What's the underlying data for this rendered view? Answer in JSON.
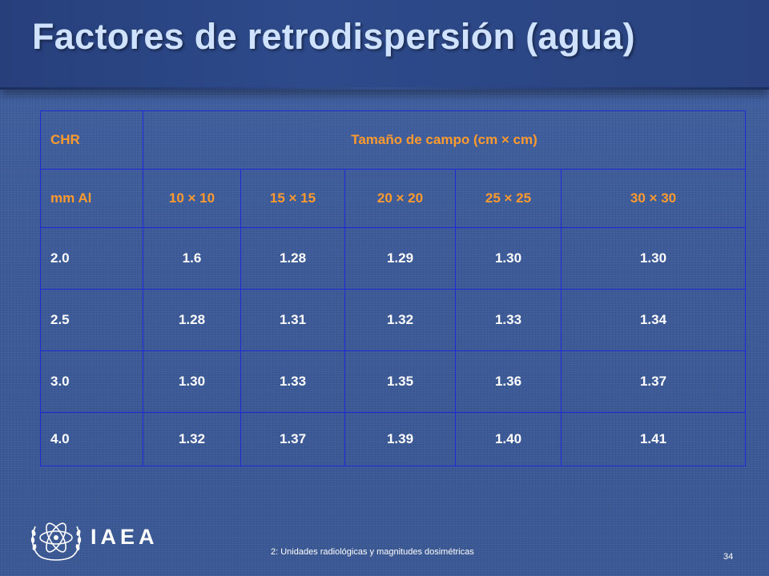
{
  "title": "Factores de retrodispersión (agua)",
  "table": {
    "header_row": [
      "CHR",
      "Tamaño de campo (cm × cm)"
    ],
    "sub_header_row": [
      "mm Al",
      "10 × 10",
      "15 × 15",
      "20 × 20",
      "25 × 25",
      "30 × 30"
    ],
    "rows": [
      [
        "2.0",
        "1.6",
        "1.28",
        "1.29",
        "1.30",
        "1.30"
      ],
      [
        "2.5",
        "1.28",
        "1.31",
        "1.32",
        "1.33",
        "1.34"
      ],
      [
        "3.0",
        "1.30",
        "1.33",
        "1.35",
        "1.36",
        "1.37"
      ],
      [
        "4.0",
        "1.32",
        "1.37",
        "1.39",
        "1.40",
        "1.41"
      ]
    ]
  },
  "footer": {
    "logo_text": "IAEA",
    "note": "2: Unidades radiológicas y magnitudes dosimétricas",
    "page_number": "34"
  },
  "colors": {
    "background": "#3e5b97",
    "title": "#cfe2ff",
    "header_text": "#ff9a2e",
    "grid_lines": "#1d2bd6",
    "cell_text": "#ffffff"
  },
  "icons": [
    "iaea-logo-icon"
  ]
}
